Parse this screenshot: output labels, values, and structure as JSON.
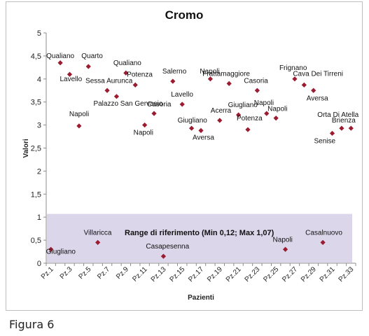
{
  "caption": "Figura 6",
  "chart_data": {
    "type": "scatter",
    "title": "Cromo",
    "xlabel": "Pazienti",
    "ylabel": "Valori",
    "ylim": [
      0,
      5
    ],
    "yticks": [
      "0",
      "0,5",
      "1",
      "1,5",
      "2",
      "2,5",
      "3",
      "3,5",
      "4",
      "4,5",
      "5"
    ],
    "xticks": [
      "Pz.1",
      "Pz.3",
      "Pz.5",
      "Pz.7",
      "Pz.9",
      "Pz.11",
      "Pz.13",
      "Pz.15",
      "Pz.17",
      "Pz.19",
      "Pz.21",
      "Pz.23",
      "Pz.25",
      "Pz.27",
      "Pz.29",
      "Pz.31",
      "Pz.33"
    ],
    "grid": false,
    "marker_color": "#9b1b30",
    "reference_range": {
      "label": "Range di riferimento (Min 0,12; Max 1,07)",
      "min": 0.12,
      "max": 1.07,
      "color": "#dcd6ea"
    },
    "points": [
      {
        "x": "Pz.1",
        "y": 0.3,
        "label": "Giugliano"
      },
      {
        "x": "Pz.2",
        "y": 4.35,
        "label": "Qualiano"
      },
      {
        "x": "Pz.3",
        "y": 4.1,
        "label": "Lavello"
      },
      {
        "x": "Pz.4",
        "y": 2.98,
        "label": "Napoli"
      },
      {
        "x": "Pz.5",
        "y": 4.27,
        "label": "Quarto"
      },
      {
        "x": "Pz.6",
        "y": 0.45,
        "label": "Villaricca"
      },
      {
        "x": "Pz.7",
        "y": 3.75,
        "label": "Sessa Aurunca"
      },
      {
        "x": "Pz.8",
        "y": 3.62,
        "label": "Palazzo San Gervasio"
      },
      {
        "x": "Pz.9",
        "y": 4.13,
        "label": "Qualiano"
      },
      {
        "x": "Pz.10",
        "y": 3.87,
        "label": "Potenza"
      },
      {
        "x": "Pz.11",
        "y": 3.0,
        "label": "Napoli"
      },
      {
        "x": "Pz.12",
        "y": 3.25,
        "label": "Casoria"
      },
      {
        "x": "Pz.13",
        "y": 0.15,
        "label": "Casapesenna"
      },
      {
        "x": "Pz.14",
        "y": 3.95,
        "label": "Salerno"
      },
      {
        "x": "Pz.15",
        "y": 3.45,
        "label": "Lavello"
      },
      {
        "x": "Pz.16",
        "y": 2.93,
        "label": "Giugliano"
      },
      {
        "x": "Pz.17",
        "y": 2.88,
        "label": "Aversa"
      },
      {
        "x": "Pz.18",
        "y": 4.0,
        "label": "Napoli"
      },
      {
        "x": "Pz.19",
        "y": 3.1,
        "label": "Acerra"
      },
      {
        "x": "Pz.20",
        "y": 3.9,
        "label": "Frattamaggiore"
      },
      {
        "x": "Pz.21",
        "y": 3.22,
        "label": "Giugliano"
      },
      {
        "x": "Pz.22",
        "y": 2.9,
        "label": "Potenza"
      },
      {
        "x": "Pz.23",
        "y": 3.75,
        "label": "Casoria"
      },
      {
        "x": "Pz.24",
        "y": 3.25,
        "label": "Napoli"
      },
      {
        "x": "Pz.25",
        "y": 3.15,
        "label": "Napoli"
      },
      {
        "x": "Pz.26",
        "y": 0.3,
        "label": "Napoli"
      },
      {
        "x": "Pz.27",
        "y": 4.0,
        "label": "Frignano"
      },
      {
        "x": "Pz.28",
        "y": 3.87,
        "label": "Cava Dei Tirreni"
      },
      {
        "x": "Pz.29",
        "y": 3.75,
        "label": "Aversa"
      },
      {
        "x": "Pz.30",
        "y": 0.45,
        "label": "Casalnuovo"
      },
      {
        "x": "Pz.31",
        "y": 2.82,
        "label": "Senise"
      },
      {
        "x": "Pz.32",
        "y": 2.93,
        "label": "Brienza"
      },
      {
        "x": "Pz.33",
        "y": 2.93,
        "label": "Orta Di Atella"
      }
    ]
  }
}
